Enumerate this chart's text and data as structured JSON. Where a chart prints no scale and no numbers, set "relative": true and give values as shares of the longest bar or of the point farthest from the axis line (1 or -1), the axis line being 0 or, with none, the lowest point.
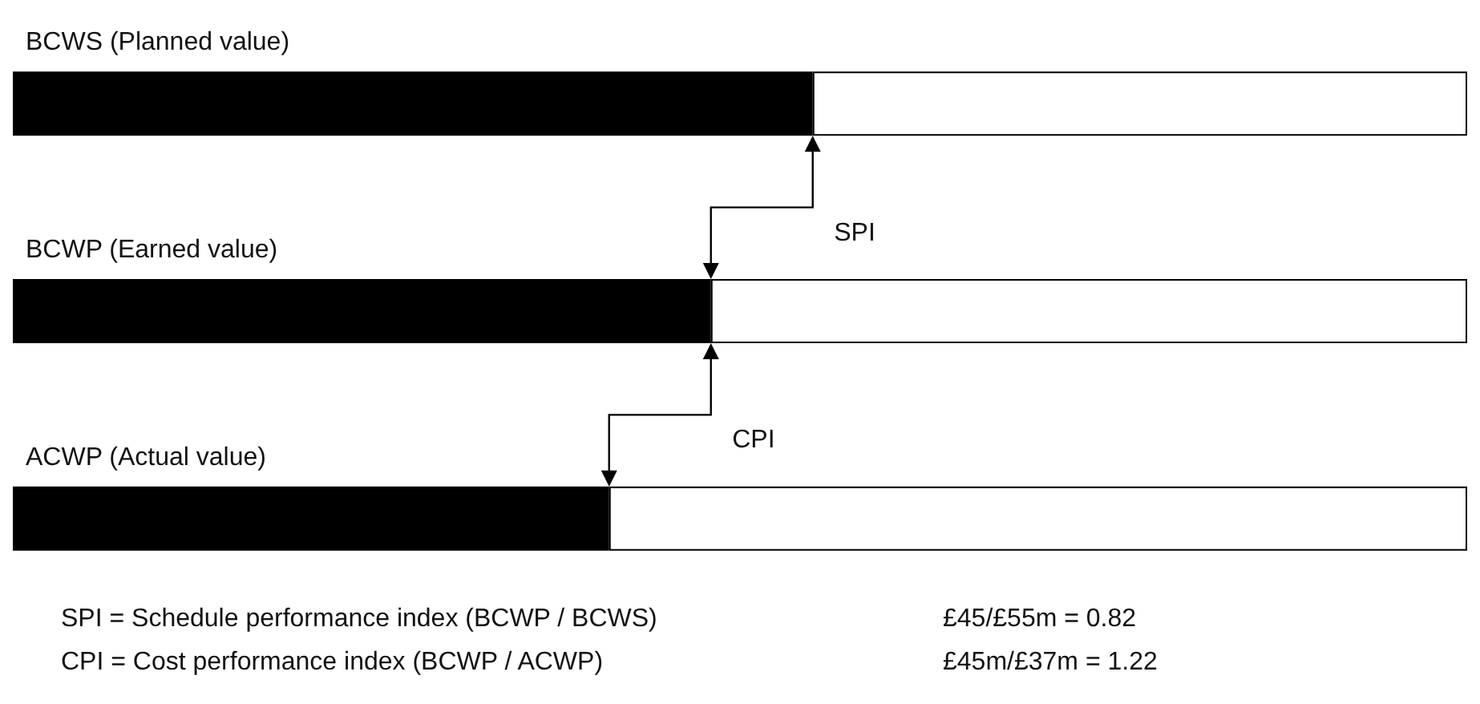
{
  "chart_data": {
    "type": "bar",
    "orientation": "horizontal",
    "stacked": true,
    "relative": true,
    "categories": [
      "BCWS (Planned value)",
      "BCWP (Earned value)",
      "ACWP (Actual value)"
    ],
    "series": [
      {
        "color": "#000000",
        "values": [
          0.55,
          0.48,
          0.41
        ]
      },
      {
        "color": "#ffffff",
        "values": [
          0.45,
          0.52,
          0.59
        ]
      }
    ],
    "annotations": [
      "SPI",
      "CPI",
      "SPI = Schedule performance index (BCWP / BCWS)",
      "£45/£55m = 0.82",
      "CPI = Cost performance index (BCWP / ACWP)",
      "£45m/£37m = 1.22"
    ],
    "data_labels": false
  }
}
